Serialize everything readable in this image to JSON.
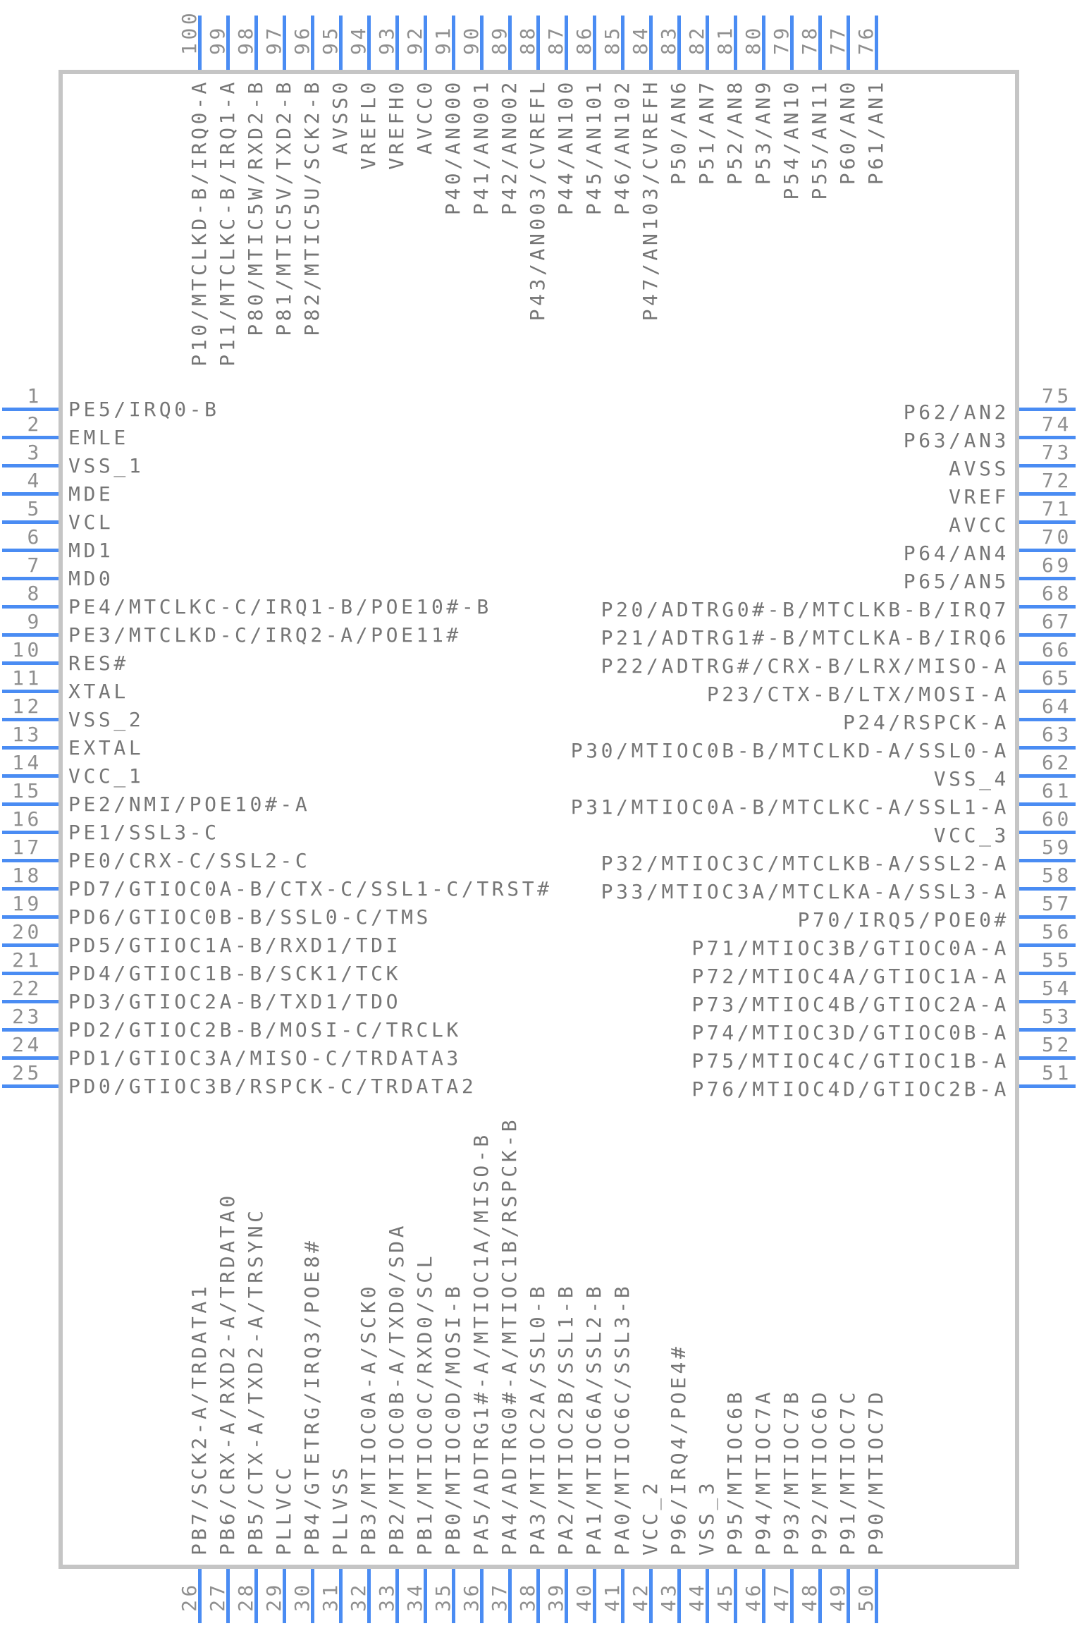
{
  "diagram": {
    "kind": "ic-pinout-symbol",
    "pin_count": 100
  },
  "colors": {
    "pin_line": "#4a8cf3",
    "pin_number_text": "#8f8f8f",
    "pin_label_text": "#767676",
    "chip_border": "#c5c5c5",
    "background": "#ffffff"
  },
  "pins": {
    "left": [
      {
        "number": "1",
        "label": "PE5/IRQ0-B"
      },
      {
        "number": "2",
        "label": "EMLE"
      },
      {
        "number": "3",
        "label": "VSS_1"
      },
      {
        "number": "4",
        "label": "MDE"
      },
      {
        "number": "5",
        "label": "VCL"
      },
      {
        "number": "6",
        "label": "MD1"
      },
      {
        "number": "7",
        "label": "MD0"
      },
      {
        "number": "8",
        "label": "PE4/MTCLKC-C/IRQ1-B/POE10#-B"
      },
      {
        "number": "9",
        "label": "PE3/MTCLKD-C/IRQ2-A/POE11#"
      },
      {
        "number": "10",
        "label": "RES#"
      },
      {
        "number": "11",
        "label": "XTAL"
      },
      {
        "number": "12",
        "label": "VSS_2"
      },
      {
        "number": "13",
        "label": "EXTAL"
      },
      {
        "number": "14",
        "label": "VCC_1"
      },
      {
        "number": "15",
        "label": "PE2/NMI/POE10#-A"
      },
      {
        "number": "16",
        "label": "PE1/SSL3-C"
      },
      {
        "number": "17",
        "label": "PE0/CRX-C/SSL2-C"
      },
      {
        "number": "18",
        "label": "PD7/GTIOC0A-B/CTX-C/SSL1-C/TRST#"
      },
      {
        "number": "19",
        "label": "PD6/GTIOC0B-B/SSL0-C/TMS"
      },
      {
        "number": "20",
        "label": "PD5/GTIOC1A-B/RXD1/TDI"
      },
      {
        "number": "21",
        "label": "PD4/GTIOC1B-B/SCK1/TCK"
      },
      {
        "number": "22",
        "label": "PD3/GTIOC2A-B/TXD1/TDO"
      },
      {
        "number": "23",
        "label": "PD2/GTIOC2B-B/MOSI-C/TRCLK"
      },
      {
        "number": "24",
        "label": "PD1/GTIOC3A/MISO-C/TRDATA3"
      },
      {
        "number": "25",
        "label": "PD0/GTIOC3B/RSPCK-C/TRDATA2"
      }
    ],
    "right": [
      {
        "number": "75",
        "label": "P62/AN2"
      },
      {
        "number": "74",
        "label": "P63/AN3"
      },
      {
        "number": "73",
        "label": "AVSS"
      },
      {
        "number": "72",
        "label": "VREF"
      },
      {
        "number": "71",
        "label": "AVCC"
      },
      {
        "number": "70",
        "label": "P64/AN4"
      },
      {
        "number": "69",
        "label": "P65/AN5"
      },
      {
        "number": "68",
        "label": "P20/ADTRG0#-B/MTCLKB-B/IRQ7"
      },
      {
        "number": "67",
        "label": "P21/ADTRG1#-B/MTCLKA-B/IRQ6"
      },
      {
        "number": "66",
        "label": "P22/ADTRG#/CRX-B/LRX/MISO-A"
      },
      {
        "number": "65",
        "label": "P23/CTX-B/LTX/MOSI-A"
      },
      {
        "number": "64",
        "label": "P24/RSPCK-A"
      },
      {
        "number": "63",
        "label": "P30/MTIOC0B-B/MTCLKD-A/SSL0-A"
      },
      {
        "number": "62",
        "label": "VSS_4"
      },
      {
        "number": "61",
        "label": "P31/MTIOC0A-B/MTCLKC-A/SSL1-A"
      },
      {
        "number": "60",
        "label": "VCC_3"
      },
      {
        "number": "59",
        "label": "P32/MTIOC3C/MTCLKB-A/SSL2-A"
      },
      {
        "number": "58",
        "label": "P33/MTIOC3A/MTCLKA-A/SSL3-A"
      },
      {
        "number": "57",
        "label": "P70/IRQ5/POE0#"
      },
      {
        "number": "56",
        "label": "P71/MTIOC3B/GTIOC0A-A"
      },
      {
        "number": "55",
        "label": "P72/MTIOC4A/GTIOC1A-A"
      },
      {
        "number": "54",
        "label": "P73/MTIOC4B/GTIOC2A-A"
      },
      {
        "number": "53",
        "label": "P74/MTIOC3D/GTIOC0B-A"
      },
      {
        "number": "52",
        "label": "P75/MTIOC4C/GTIOC1B-A"
      },
      {
        "number": "51",
        "label": "P76/MTIOC4D/GTIOC2B-A"
      }
    ],
    "top": [
      {
        "number": "100",
        "label": "P10/MTCLKD-B/IRQ0-A"
      },
      {
        "number": "99",
        "label": "P11/MTCLKC-B/IRQ1-A"
      },
      {
        "number": "98",
        "label": "P80/MTIC5W/RXD2-B"
      },
      {
        "number": "97",
        "label": "P81/MTIC5V/TXD2-B"
      },
      {
        "number": "96",
        "label": "P82/MTIC5U/SCK2-B"
      },
      {
        "number": "95",
        "label": "AVSS0"
      },
      {
        "number": "94",
        "label": "VREFL0"
      },
      {
        "number": "93",
        "label": "VREFH0"
      },
      {
        "number": "92",
        "label": "AVCC0"
      },
      {
        "number": "91",
        "label": "P40/AN000"
      },
      {
        "number": "90",
        "label": "P41/AN001"
      },
      {
        "number": "89",
        "label": "P42/AN002"
      },
      {
        "number": "88",
        "label": "P43/AN003/CVREFL"
      },
      {
        "number": "87",
        "label": "P44/AN100"
      },
      {
        "number": "86",
        "label": "P45/AN101"
      },
      {
        "number": "85",
        "label": "P46/AN102"
      },
      {
        "number": "84",
        "label": "P47/AN103/CVREFH"
      },
      {
        "number": "83",
        "label": "P50/AN6"
      },
      {
        "number": "82",
        "label": "P51/AN7"
      },
      {
        "number": "81",
        "label": "P52/AN8"
      },
      {
        "number": "80",
        "label": "P53/AN9"
      },
      {
        "number": "79",
        "label": "P54/AN10"
      },
      {
        "number": "78",
        "label": "P55/AN11"
      },
      {
        "number": "77",
        "label": "P60/AN0"
      },
      {
        "number": "76",
        "label": "P61/AN1"
      }
    ],
    "bottom": [
      {
        "number": "26",
        "label": "PB7/SCK2-A/TRDATA1"
      },
      {
        "number": "27",
        "label": "PB6/CRX-A/RXD2-A/TRDATA0"
      },
      {
        "number": "28",
        "label": "PB5/CTX-A/TXD2-A/TRSYNC"
      },
      {
        "number": "29",
        "label": "PLLVCC"
      },
      {
        "number": "30",
        "label": "PB4/GTETRG/IRQ3/POE8#"
      },
      {
        "number": "31",
        "label": "PLLVSS"
      },
      {
        "number": "32",
        "label": "PB3/MTIOC0A-A/SCK0"
      },
      {
        "number": "33",
        "label": "PB2/MTIOC0B-A/TXD0/SDA"
      },
      {
        "number": "34",
        "label": "PB1/MTIOC0C/RXD0/SCL"
      },
      {
        "number": "35",
        "label": "PB0/MTIOC0D/MOSI-B"
      },
      {
        "number": "36",
        "label": "PA5/ADTRG1#-A/MTIOC1A/MISO-B"
      },
      {
        "number": "37",
        "label": "PA4/ADTRG0#-A/MTIOC1B/RSPCK-B"
      },
      {
        "number": "38",
        "label": "PA3/MTIOC2A/SSL0-B"
      },
      {
        "number": "39",
        "label": "PA2/MTIOC2B/SSL1-B"
      },
      {
        "number": "40",
        "label": "PA1/MTIOC6A/SSL2-B"
      },
      {
        "number": "41",
        "label": "PA0/MTIOC6C/SSL3-B"
      },
      {
        "number": "42",
        "label": "VCC_2"
      },
      {
        "number": "43",
        "label": "P96/IRQ4/POE4#"
      },
      {
        "number": "44",
        "label": "VSS_3"
      },
      {
        "number": "45",
        "label": "P95/MTIOC6B"
      },
      {
        "number": "46",
        "label": "P94/MTIOC7A"
      },
      {
        "number": "47",
        "label": "P93/MTIOC7B"
      },
      {
        "number": "48",
        "label": "P92/MTIOC6D"
      },
      {
        "number": "49",
        "label": "P91/MTIOC7C"
      },
      {
        "number": "50",
        "label": "P90/MTIOC7D"
      }
    ]
  }
}
